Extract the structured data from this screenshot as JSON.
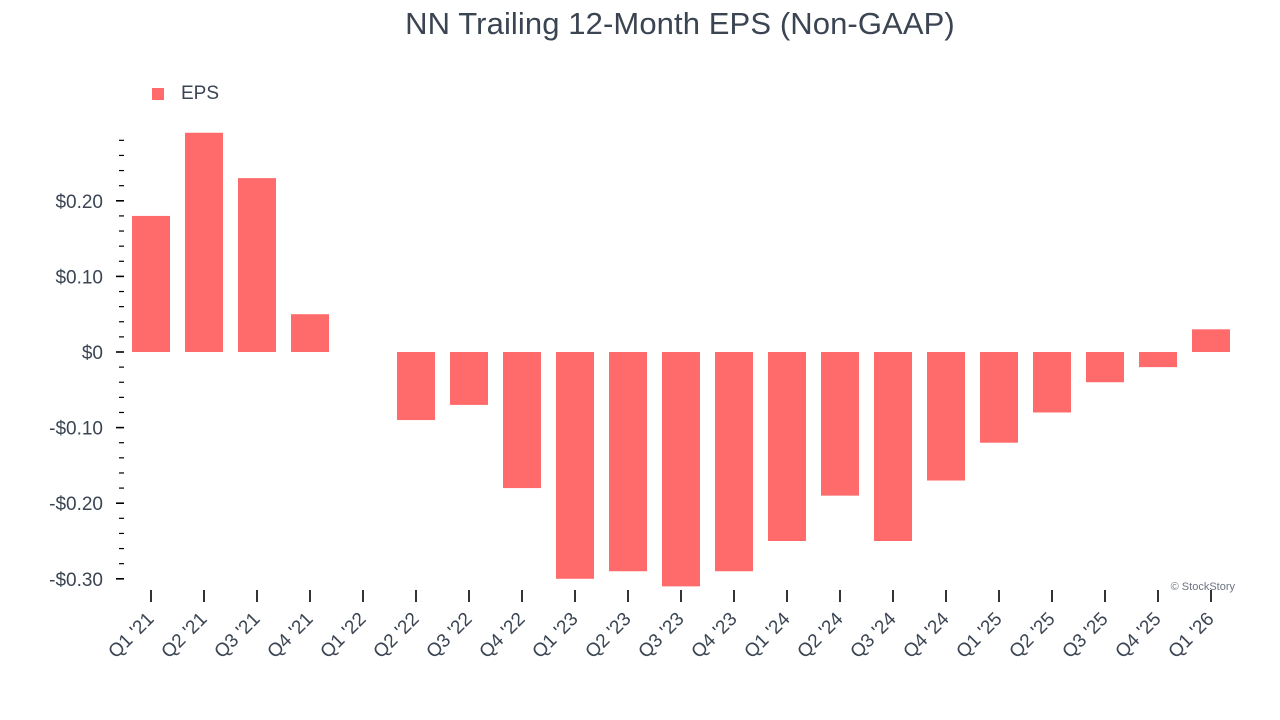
{
  "chart_data": {
    "type": "bar",
    "title": "NN Trailing 12-Month EPS (Non-GAAP)",
    "xlabel": "",
    "ylabel": "",
    "categories": [
      "Q1 '21",
      "Q2 '21",
      "Q3 '21",
      "Q4 '21",
      "Q1 '22",
      "Q2 '22",
      "Q3 '22",
      "Q4 '22",
      "Q1 '23",
      "Q2 '23",
      "Q3 '23",
      "Q4 '23",
      "Q1 '24",
      "Q2 '24",
      "Q3 '24",
      "Q4 '24",
      "Q1 '25",
      "Q2 '25",
      "Q3 '25",
      "Q4 '25",
      "Q1 '26"
    ],
    "series": [
      {
        "name": "EPS",
        "color": "#ff6b6b",
        "values": [
          0.18,
          0.29,
          0.23,
          0.05,
          0.0,
          -0.09,
          -0.07,
          -0.18,
          -0.3,
          -0.29,
          -0.31,
          -0.29,
          -0.25,
          -0.19,
          -0.25,
          -0.17,
          -0.12,
          -0.08,
          -0.04,
          -0.02,
          0.03
        ]
      }
    ],
    "ylim": [
      -0.31,
      0.29
    ],
    "yticks": [
      0.2,
      0.1,
      0,
      -0.1,
      -0.2,
      -0.3
    ],
    "ytick_labels": [
      "$0.20",
      "$0.10",
      "$0",
      "-$0.10",
      "-$0.20",
      "-$0.30"
    ],
    "minor_tick_step": 0.02,
    "grid": false,
    "legend_position": "top-left",
    "credit": "© StockStory",
    "colors": {
      "text": "#3a4452",
      "axis": "#000000"
    }
  }
}
